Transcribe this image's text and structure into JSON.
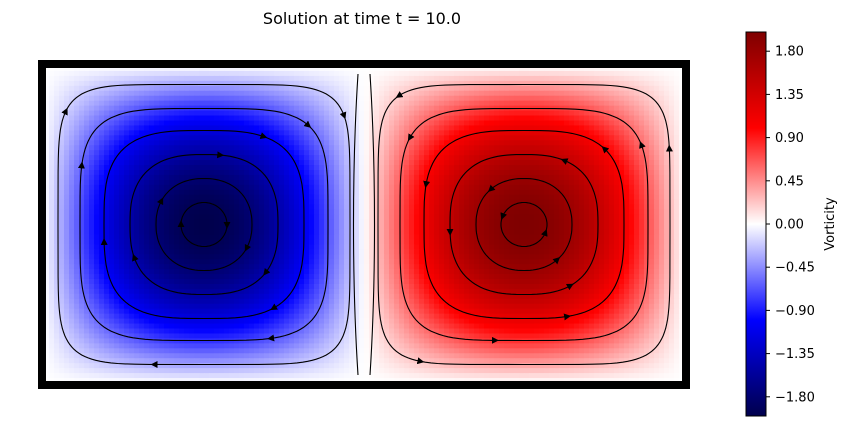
{
  "chart_data": {
    "type": "heatmap",
    "title": "Solution at time t = 10.0",
    "colorbar": {
      "label": "Vorticity",
      "ticks": [
        "1.80",
        "1.35",
        "0.90",
        "0.45",
        "0.00",
        "−0.45",
        "−0.90",
        "−1.35",
        "−1.80"
      ],
      "tick_values": [
        1.8,
        1.35,
        0.9,
        0.45,
        0.0,
        -0.45,
        -0.9,
        -1.35,
        -1.8
      ],
      "range": [
        -2.0,
        2.0
      ],
      "colormap": "seismic",
      "colors": [
        "#00004c",
        "#0000ff",
        "#ffffff",
        "#ff0000",
        "#7f0000"
      ]
    },
    "field": {
      "description_of_values": "two counter-rotating vortex cells",
      "left_cell": {
        "peak": -2.0
      },
      "right_cell": {
        "peak": 2.0
      }
    },
    "grid": false,
    "axes_visible": false,
    "domain_border_color": "#000000"
  }
}
